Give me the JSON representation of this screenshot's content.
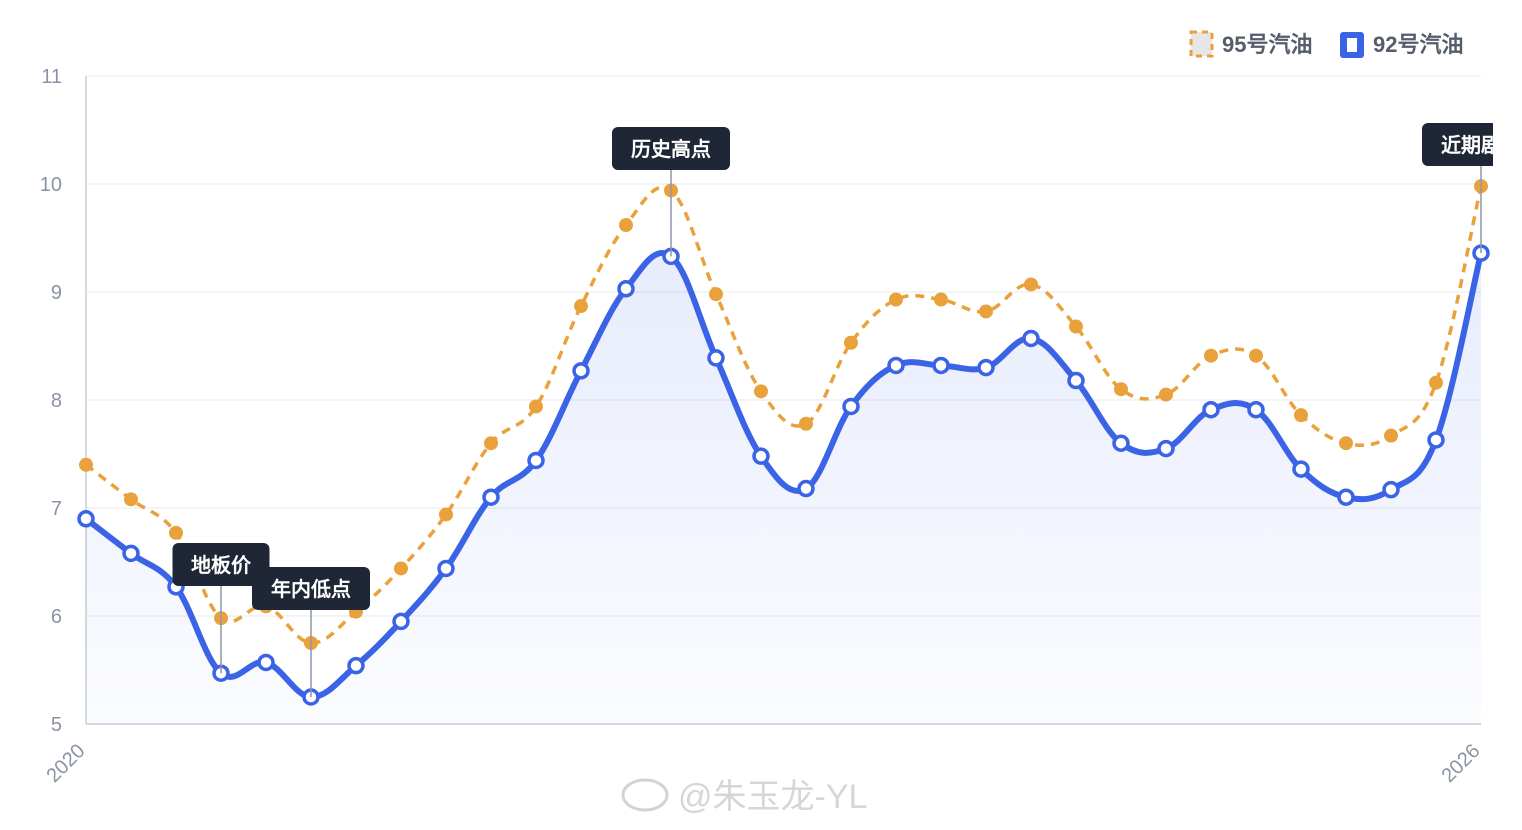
{
  "chart_data": {
    "type": "line",
    "title": "",
    "xlabel": "",
    "ylabel": "",
    "ylim": [
      5,
      11
    ],
    "yticks": [
      5,
      6,
      7,
      8,
      9,
      10,
      11
    ],
    "x_tick_labels": [
      {
        "index": 0,
        "label": "2020"
      },
      {
        "index": 31,
        "label": "2026"
      }
    ],
    "grid": true,
    "legend": "top-right",
    "series": [
      {
        "name": "95号汽油",
        "color": "#E9A23B",
        "style": "dashed",
        "values": [
          7.4,
          7.08,
          6.77,
          5.98,
          6.09,
          5.75,
          6.04,
          6.44,
          6.94,
          7.6,
          7.94,
          8.87,
          9.62,
          9.94,
          8.98,
          8.08,
          7.78,
          8.53,
          8.93,
          8.93,
          8.82,
          9.07,
          8.68,
          8.1,
          8.05,
          8.41,
          8.41,
          7.86,
          7.6,
          7.67,
          8.16,
          9.98
        ]
      },
      {
        "name": "92号汽油",
        "color": "#3B63E6",
        "style": "solid-area",
        "values": [
          6.9,
          6.58,
          6.27,
          5.47,
          5.57,
          5.25,
          5.54,
          5.95,
          6.44,
          7.1,
          7.44,
          8.27,
          9.03,
          9.33,
          8.39,
          7.48,
          7.18,
          7.94,
          8.32,
          8.32,
          8.3,
          8.57,
          8.18,
          7.6,
          7.55,
          7.91,
          7.91,
          7.36,
          7.1,
          7.17,
          7.63,
          9.36
        ]
      }
    ],
    "annotations": [
      {
        "index": 3,
        "text": "地板价"
      },
      {
        "index": 5,
        "text": "年内低点"
      },
      {
        "index": 13,
        "text": "历史高点"
      },
      {
        "index": 31,
        "text": "近期剧烈"
      }
    ]
  },
  "watermark": "@朱玉龙-YL"
}
